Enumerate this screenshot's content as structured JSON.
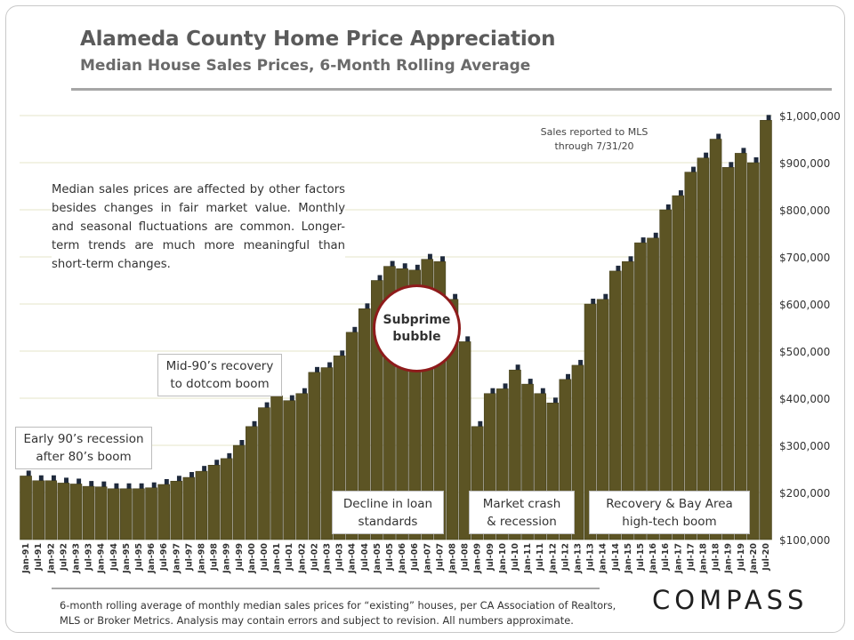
{
  "title": "Alameda County Home Price Appreciation",
  "subtitle": "Median House Sales Prices, 6-Month Rolling Average",
  "note": "Median sales prices are affected by other factors besides changes in fair market value. Monthly and seasonal fluctuations are common. Longer-term trends are much more meaningful than short-term changes.",
  "mls_note": "Sales reported to MLS through 7/31/20",
  "annotations": {
    "early90s": "Early 90’s recession\nafter 80’s boom",
    "mid90s": "Mid-90’s recovery\nto dotcom boom",
    "subprime": "Subprime\nbubble",
    "decline": "Decline in loan\nstandards",
    "crash": "Market crash\n& recession",
    "recovery": "Recovery & Bay Area\nhigh-tech boom"
  },
  "footnote": "6-month rolling average of monthly median sales prices for “existing” houses, per CA Association of Realtors, MLS or Broker Metrics.  Analysis may contain errors and subject to revision. All numbers approximate.",
  "logo": "COMPASS",
  "colors": {
    "bar_fill": "#5c5424",
    "bar_shadow": "#1f2a3c",
    "grid": "#e6e6c8",
    "bubble_border": "#8e1b1b"
  },
  "chart_data": {
    "type": "bar",
    "title": "Alameda County Home Price Appreciation",
    "subtitle": "Median House Sales Prices, 6-Month Rolling Average",
    "ylim": [
      100000,
      1000000
    ],
    "y_ticks": [
      "$100,000",
      "$200,000",
      "$300,000",
      "$400,000",
      "$500,000",
      "$600,000",
      "$700,000",
      "$800,000",
      "$900,000",
      "$1,000,000"
    ],
    "grid": true,
    "x_tick_labels": [
      "Jan-91",
      "Jul-91",
      "Jan-92",
      "Jul-92",
      "Jan-93",
      "Jul-93",
      "Jan-94",
      "Jul-94",
      "Jan-95",
      "Jul-95",
      "Jan-96",
      "Jul-96",
      "Jan-97",
      "Jul-97",
      "Jan-98",
      "Jul-98",
      "Jan-99",
      "Jul-99",
      "Jan-00",
      "Jul-00",
      "Jan-01",
      "Jul-01",
      "Jan-02",
      "Jul-02",
      "Jan-03",
      "Jul-03",
      "Jan-04",
      "Jul-04",
      "Jan-05",
      "Jul-05",
      "Jan-06",
      "Jul-06",
      "Jan-07",
      "Jul-07",
      "Jan-08",
      "Jul-08",
      "Jan-09",
      "Jul-09",
      "Jan-10",
      "Jul-10",
      "Jan-11",
      "Jul-11",
      "Jan-12",
      "Jul-12",
      "Jan-13",
      "Jul-13",
      "Jan-14",
      "Jul-14",
      "Jan-15",
      "Jul-15",
      "Jan-16",
      "Jul-16",
      "Jan-17",
      "Jul-17",
      "Jan-18",
      "Jul-18",
      "Jan-19",
      "Jul-19",
      "Jan-20",
      "Jul-20"
    ],
    "series": [
      {
        "name": "Median house sales price, 6-month rolling average",
        "period": "Jan-91 to Jul-20, semi-annual readings",
        "values": [
          235000,
          225000,
          225000,
          220000,
          218000,
          213000,
          212000,
          208000,
          208000,
          208000,
          210000,
          217000,
          224000,
          232000,
          245000,
          258000,
          272000,
          300000,
          340000,
          380000,
          405000,
          395000,
          410000,
          455000,
          465000,
          490000,
          540000,
          590000,
          650000,
          680000,
          675000,
          672000,
          695000,
          690000,
          610000,
          520000,
          340000,
          410000,
          420000,
          460000,
          430000,
          410000,
          390000,
          440000,
          470000,
          600000,
          610000,
          670000,
          690000,
          730000,
          740000,
          800000,
          830000,
          880000,
          910000,
          950000,
          890000,
          920000,
          900000,
          990000
        ]
      }
    ]
  }
}
